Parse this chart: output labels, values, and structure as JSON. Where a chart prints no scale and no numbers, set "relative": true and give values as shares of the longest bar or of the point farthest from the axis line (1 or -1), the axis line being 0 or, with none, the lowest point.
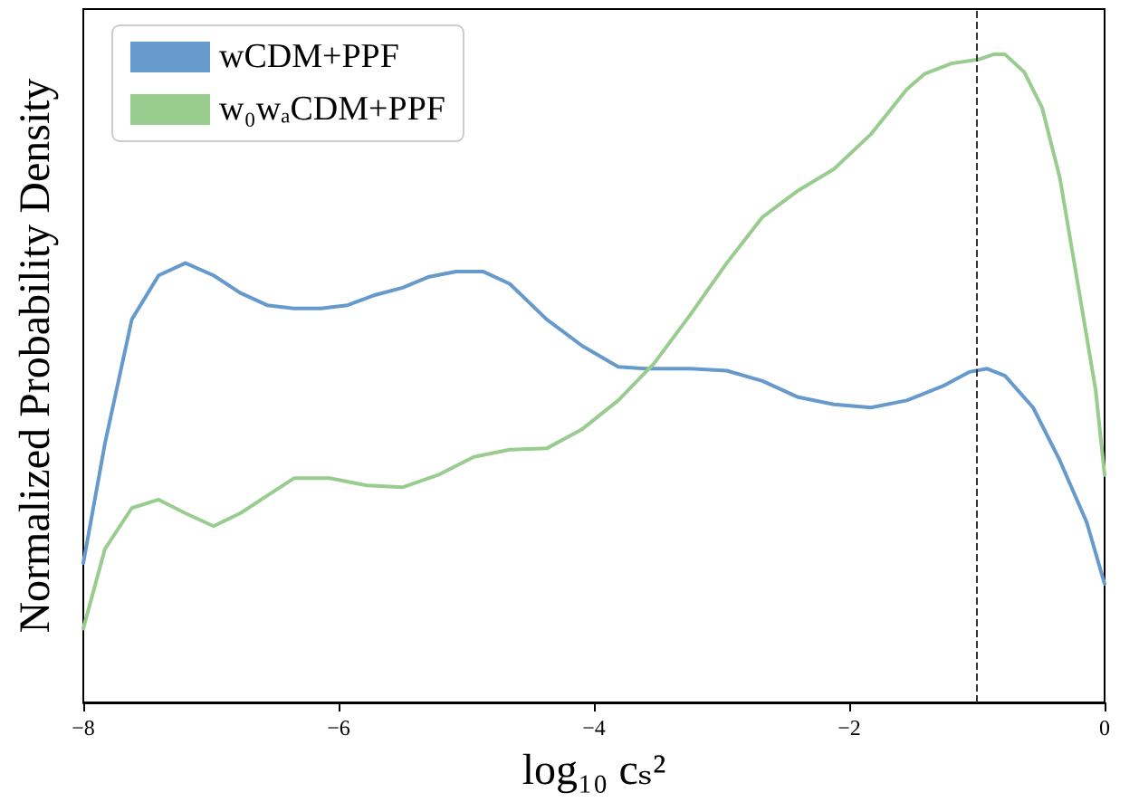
{
  "chart_data": {
    "type": "line",
    "relative": true,
    "xlabel": "log₁₀ cₛ²",
    "ylabel": "Normalized Probability Density",
    "xlim": [
      -8,
      0
    ],
    "xticks": [
      -8,
      -6,
      -4,
      -2,
      0
    ],
    "tick_labels": "x",
    "grid": false,
    "legend": "top left",
    "marker": "none",
    "line_style": "solid",
    "ref_lines": [
      {
        "axis": "x",
        "value": -1,
        "color": "#333333",
        "line_style": "dashed"
      }
    ],
    "series": [
      {
        "name": "wCDM+PPF",
        "color": "#6699cc",
        "x": [
          -8,
          -7.83,
          -7.62,
          -7.41,
          -7.2,
          -6.98,
          -6.77,
          -6.56,
          -6.35,
          -6.14,
          -5.93,
          -5.71,
          -5.5,
          -5.29,
          -5.08,
          -4.87,
          -4.66,
          -4.37,
          -4.09,
          -3.81,
          -3.6,
          -3.25,
          -2.96,
          -2.68,
          -2.4,
          -2.12,
          -1.83,
          -1.55,
          -1.27,
          -1.06,
          -0.92,
          -0.78,
          -0.56,
          -0.35,
          -0.14,
          0
        ],
        "values": [
          0.215,
          0.4,
          0.591,
          0.659,
          0.678,
          0.659,
          0.632,
          0.613,
          0.608,
          0.608,
          0.613,
          0.629,
          0.64,
          0.657,
          0.665,
          0.665,
          0.646,
          0.591,
          0.55,
          0.518,
          0.515,
          0.515,
          0.512,
          0.496,
          0.471,
          0.46,
          0.455,
          0.466,
          0.488,
          0.51,
          0.515,
          0.504,
          0.455,
          0.373,
          0.278,
          0.183
        ]
      },
      {
        "name": "w₀wₐCDM+PPF",
        "color": "#99cc8f",
        "x": [
          -8,
          -7.83,
          -7.62,
          -7.41,
          -7.2,
          -6.98,
          -6.77,
          -6.56,
          -6.35,
          -6.07,
          -5.78,
          -5.5,
          -5.22,
          -4.94,
          -4.66,
          -4.37,
          -4.09,
          -3.81,
          -3.53,
          -3.25,
          -2.96,
          -2.68,
          -2.4,
          -2.12,
          -1.83,
          -1.55,
          -1.41,
          -1.2,
          -0.99,
          -0.87,
          -0.78,
          -0.63,
          -0.49,
          -0.35,
          -0.21,
          -0.07,
          0
        ],
        "values": [
          0.114,
          0.237,
          0.3,
          0.313,
          0.292,
          0.272,
          0.292,
          0.319,
          0.346,
          0.346,
          0.335,
          0.332,
          0.351,
          0.379,
          0.39,
          0.392,
          0.422,
          0.466,
          0.523,
          0.597,
          0.678,
          0.749,
          0.79,
          0.823,
          0.877,
          0.946,
          0.97,
          0.986,
          0.992,
          1,
          1,
          0.973,
          0.918,
          0.809,
          0.646,
          0.482,
          0.351
        ]
      }
    ]
  }
}
